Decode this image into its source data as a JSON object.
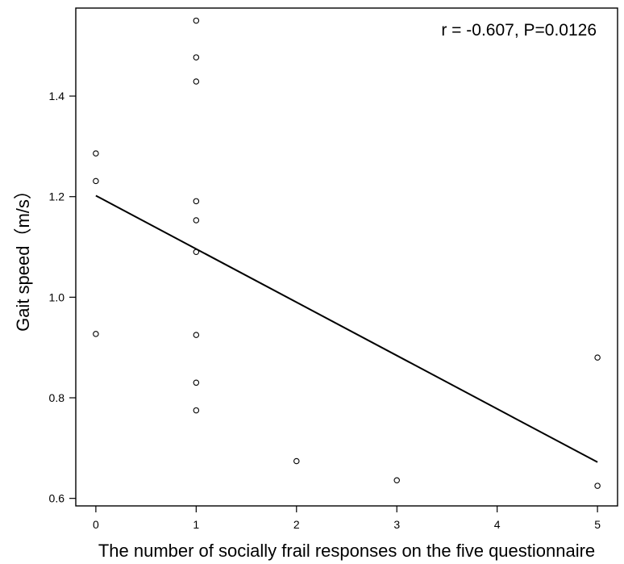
{
  "chart_data": {
    "type": "scatter",
    "title": "",
    "xlabel": "The number of socially frail responses on the five questionnaire",
    "ylabel": "Gait speed（m/s）",
    "annotation": "r = -0.607, P=0.0126",
    "xlim": [
      -0.2,
      5.2
    ],
    "ylim": [
      0.585,
      1.575
    ],
    "xticks": [
      0,
      1,
      2,
      3,
      4,
      5
    ],
    "yticks": [
      0.6,
      0.8,
      1.0,
      1.2,
      1.4
    ],
    "ytick_labels": [
      "0.6",
      "0.8",
      "1.0",
      "1.2",
      "1.4"
    ],
    "grid": false,
    "legend": "none",
    "point_color": "#000000",
    "series": [
      {
        "points": [
          {
            "x": 0,
            "y": 1.286
          },
          {
            "x": 0,
            "y": 1.231
          },
          {
            "x": 0,
            "y": 0.927
          },
          {
            "x": 1,
            "y": 1.55
          },
          {
            "x": 1,
            "y": 1.477
          },
          {
            "x": 1,
            "y": 1.429
          },
          {
            "x": 1,
            "y": 1.191
          },
          {
            "x": 1,
            "y": 1.153
          },
          {
            "x": 1,
            "y": 1.09
          },
          {
            "x": 1,
            "y": 0.925
          },
          {
            "x": 1,
            "y": 0.83
          },
          {
            "x": 1,
            "y": 0.775
          },
          {
            "x": 2,
            "y": 0.674
          },
          {
            "x": 3,
            "y": 0.636
          },
          {
            "x": 5,
            "y": 0.88
          },
          {
            "x": 5,
            "y": 0.625
          }
        ]
      }
    ],
    "regression_line": {
      "x": [
        0,
        5
      ],
      "y": [
        1.202,
        0.672
      ]
    }
  }
}
